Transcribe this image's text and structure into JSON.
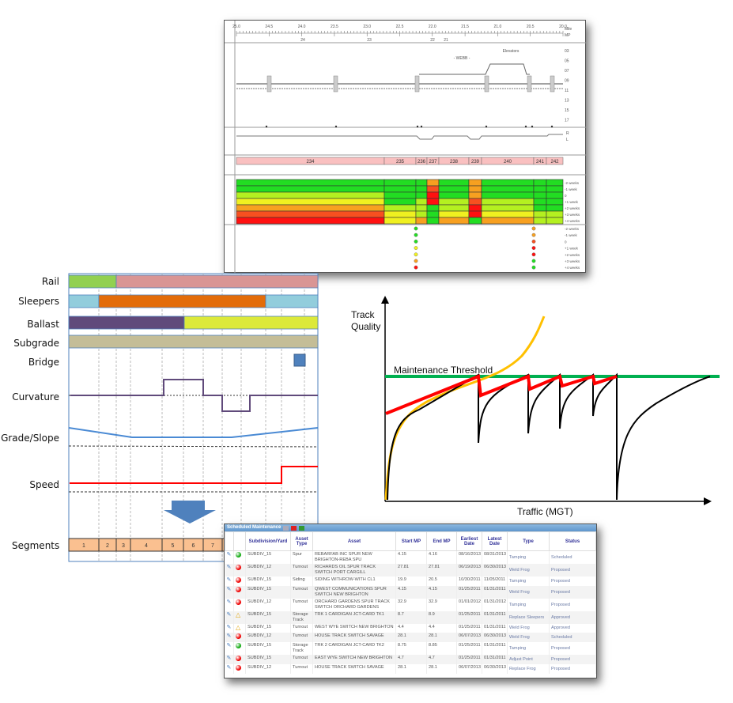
{
  "track_chart": {
    "ruler_top": [
      "25.0",
      "24.5",
      "24.0",
      "23.5",
      "23.0",
      "22.5",
      "22.0",
      "21.5",
      "21.0",
      "20.5",
      "20.0"
    ],
    "ruler_bottom": [
      "24",
      "23",
      "22",
      "21"
    ],
    "ruler_units": [
      "Mile",
      "MP"
    ],
    "infra_levels": [
      "03",
      "05",
      "07",
      "09",
      "11",
      "13",
      "15",
      "17"
    ],
    "infra_notes": [
      "Elevators",
      "- WEBB -"
    ],
    "curve_labels": [
      "R",
      "L"
    ],
    "segments": [
      "234",
      "235",
      "236",
      "237",
      "238",
      "239",
      "240",
      "241",
      "242"
    ],
    "condition_rows": [
      "-2 weeks",
      "-1 week",
      "0",
      "+1 week",
      "+2 weeks",
      "+3 weeks",
      "+4 weeks"
    ],
    "condition_colors": {
      "G": "#22dd22",
      "YG": "#b4f020",
      "Y": "#f0f020",
      "O": "#f7a020",
      "OR": "#f75020",
      "R": "#ff1010"
    },
    "ballast_condition": [
      [
        "G",
        "G",
        "YG",
        "Y",
        "O",
        "OR",
        "R"
      ],
      [
        "G",
        "G",
        "G",
        "G",
        "YG",
        "Y",
        "Y"
      ],
      [
        "G",
        "G",
        "G",
        "YG",
        "YG",
        "YG",
        "O"
      ],
      [
        "O",
        "OR",
        "R",
        "R",
        "G",
        "G",
        "G"
      ],
      [
        "G",
        "G",
        "G",
        "YG",
        "YG",
        "Y",
        "O"
      ],
      [
        "O",
        "O",
        "O",
        "OR",
        "R",
        "R",
        "G"
      ],
      [
        "G",
        "G",
        "G",
        "YG",
        "YG",
        "Y",
        "O"
      ],
      [
        "G",
        "G",
        "G",
        "G",
        "G",
        "YG",
        "YG"
      ],
      [
        "G",
        "G",
        "G",
        "G",
        "G",
        "YG",
        "YG"
      ]
    ],
    "point_condition": [
      [
        "G",
        "G",
        "G",
        "Y",
        "Y",
        "O",
        "R"
      ],
      [
        "O",
        "O",
        "OR",
        "R",
        "R",
        "G",
        "G"
      ]
    ]
  },
  "layers": {
    "labels": [
      "Rail",
      "Sleepers",
      "Ballast",
      "Subgrade",
      "Bridge",
      "Curvature",
      "Grade/Slope",
      "Speed",
      "Segments"
    ],
    "segments": [
      "1",
      "2",
      "3",
      "4",
      "5",
      "6",
      "7"
    ],
    "colors": {
      "rail_good": "#92d050",
      "rail_bad": "#d99594",
      "sleepers_good": "#92cddc",
      "sleepers_bad": "#e36c09",
      "ballast_bad": "#604a7b",
      "ballast_good": "#dce93a",
      "subgrade": "#c4bd97",
      "bridge": "#4f81bd",
      "segment": "#fac090"
    }
  },
  "degradation_chart": {
    "ylabel": "Track Quality",
    "xlabel": "Traffic (MGT)",
    "threshold_label": "Maintenance Threshold",
    "colors": {
      "threshold": "#00b050",
      "maintained": "#ff0000",
      "unmaintained": "#ffc000",
      "actual": "#000000"
    }
  },
  "maintenance_table": {
    "title": "Scheduled Maintenance",
    "toolbar_icons": [
      "print-icon",
      "pdf-icon",
      "excel-icon"
    ],
    "columns": [
      "Subdivision/Yard",
      "Asset Type",
      "Asset",
      "Start MP",
      "End MP",
      "Earliest Date",
      "Latest Date",
      "Type",
      "Status"
    ],
    "rows": [
      {
        "status_icon": "green",
        "sub": "SUBDIV_15",
        "atype": "Spur",
        "asset": "REBARFAB INC SPUR NEW BRIGHTON-REBA SPU",
        "start": "4.15",
        "end": "4.16",
        "earliest": "08/16/2013",
        "latest": "08/31/2013",
        "type": "Tamping",
        "status": "Scheduled"
      },
      {
        "status_icon": "red",
        "sub": "SUBDIV_12",
        "atype": "Turnout",
        "asset": "RICHARDS OIL SPUR TRACK SWITCH PORT CARGILL",
        "start": "27.81",
        "end": "27.81",
        "earliest": "06/19/2013",
        "latest": "06/30/2013",
        "type": "Weld Frog",
        "status": "Proposed"
      },
      {
        "status_icon": "red",
        "sub": "SUBDIV_15",
        "atype": "Siding",
        "asset": "SIDING WITHROW-WITH CL1",
        "start": "19.9",
        "end": "20.5",
        "earliest": "10/30/2011",
        "latest": "11/05/2011",
        "type": "Tamping",
        "status": "Proposed"
      },
      {
        "status_icon": "red",
        "sub": "SUBDIV_15",
        "atype": "Turnout",
        "asset": "QWEST COMMUNICATIONS SPUR SWITCH NEW BRIGHTON",
        "start": "4.15",
        "end": "4.15",
        "earliest": "01/25/2011",
        "latest": "01/31/2011",
        "type": "Weld Frog",
        "status": "Proposed"
      },
      {
        "status_icon": "red",
        "sub": "SUBDIV_12",
        "atype": "Turnout",
        "asset": "ORCHARD GARDENS SPUR TRACK SWITCH ORCHARD GARDENS",
        "start": "32.9",
        "end": "32.9",
        "earliest": "01/01/2012",
        "latest": "01/31/2012",
        "type": "Tamping",
        "status": "Proposed"
      },
      {
        "status_icon": "warning",
        "sub": "SUBDIV_15",
        "atype": "Storage Track",
        "asset": "TRK 1 CARDIGAN JCT-CARD TK1",
        "start": "8.7",
        "end": "8.9",
        "earliest": "01/25/2011",
        "latest": "01/31/2011",
        "type": "Replace Sleepers",
        "status": "Approved"
      },
      {
        "status_icon": "warning",
        "sub": "SUBDIV_15",
        "atype": "Turnout",
        "asset": "WEST WYE SWITCH NEW BRIGHTON",
        "start": "4.4",
        "end": "4.4",
        "earliest": "01/25/2011",
        "latest": "01/31/2011",
        "type": "Weld Frog",
        "status": "Approved"
      },
      {
        "status_icon": "red",
        "sub": "SUBDIV_12",
        "atype": "Turnout",
        "asset": "HOUSE TRACK SWITCH SAVAGE",
        "start": "28.1",
        "end": "28.1",
        "earliest": "06/07/2013",
        "latest": "06/30/2013",
        "type": "Weld Frog",
        "status": "Scheduled"
      },
      {
        "status_icon": "green",
        "sub": "SUBDIV_15",
        "atype": "Storage Track",
        "asset": "TRK 2 CARDIGAN JCT-CARD TK2",
        "start": "8.75",
        "end": "8.85",
        "earliest": "01/25/2011",
        "latest": "01/31/2011",
        "type": "Tamping",
        "status": "Proposed"
      },
      {
        "status_icon": "red",
        "sub": "SUBDIV_15",
        "atype": "Turnout",
        "asset": "EAST WYE SWITCH NEW BRIGHTON",
        "start": "4.7",
        "end": "4.7",
        "earliest": "01/25/2011",
        "latest": "01/31/2011",
        "type": "Adjust Point",
        "status": "Proposed"
      },
      {
        "status_icon": "red",
        "sub": "SUBDIV_12",
        "atype": "Turnout",
        "asset": "HOUSE TRACK SWITCH SAVAGE",
        "start": "28.1",
        "end": "28.1",
        "earliest": "06/07/2013",
        "latest": "06/30/2013",
        "type": "Replace Frog",
        "status": "Proposed"
      }
    ]
  }
}
